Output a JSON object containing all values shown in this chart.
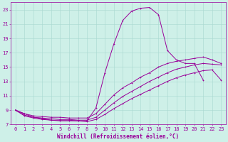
{
  "xlabel": "Windchill (Refroidissement éolien,°C)",
  "bg_color": "#cef0e8",
  "grid_color": "#a8d8d0",
  "line_color": "#990099",
  "xlim": [
    -0.5,
    23.5
  ],
  "ylim": [
    7,
    24
  ],
  "xticks": [
    0,
    1,
    2,
    3,
    4,
    5,
    6,
    7,
    8,
    9,
    10,
    11,
    12,
    13,
    14,
    15,
    16,
    17,
    18,
    19,
    20,
    21,
    22,
    23
  ],
  "yticks": [
    7,
    9,
    11,
    13,
    15,
    17,
    19,
    21,
    23
  ],
  "curve1_x": [
    0,
    1,
    2,
    3,
    4,
    5,
    6,
    7,
    8,
    9,
    10,
    11,
    12,
    13,
    14,
    15,
    16,
    17,
    18,
    19,
    20,
    21
  ],
  "curve1_y": [
    9.0,
    8.5,
    8.0,
    7.8,
    7.6,
    7.6,
    7.6,
    7.5,
    7.5,
    9.3,
    14.2,
    18.2,
    21.5,
    22.8,
    23.2,
    23.3,
    22.3,
    17.3,
    16.0,
    15.5,
    15.5,
    13.2
  ],
  "curve2_x": [
    0,
    1,
    2,
    3,
    4,
    5,
    6,
    7,
    8,
    9,
    10,
    11,
    12,
    13,
    14,
    15,
    16,
    17,
    18,
    19,
    20,
    21,
    22,
    23
  ],
  "curve2_y": [
    9.0,
    8.5,
    8.2,
    8.1,
    8.0,
    8.0,
    7.9,
    7.9,
    7.9,
    8.5,
    9.8,
    11.1,
    12.1,
    12.8,
    13.6,
    14.2,
    15.0,
    15.5,
    15.8,
    16.0,
    16.2,
    16.4,
    16.0,
    15.5
  ],
  "curve3_x": [
    0,
    1,
    2,
    3,
    4,
    5,
    6,
    7,
    8,
    9,
    10,
    11,
    12,
    13,
    14,
    15,
    16,
    17,
    18,
    19,
    20,
    21,
    22,
    23
  ],
  "curve3_y": [
    9.0,
    8.3,
    8.0,
    7.9,
    7.8,
    7.7,
    7.7,
    7.6,
    7.6,
    8.0,
    9.0,
    10.0,
    10.9,
    11.6,
    12.3,
    13.0,
    13.6,
    14.2,
    14.7,
    15.0,
    15.3,
    15.5,
    15.4,
    15.3
  ],
  "curve4_x": [
    0,
    1,
    2,
    3,
    4,
    5,
    6,
    7,
    8,
    9,
    10,
    11,
    12,
    13,
    14,
    15,
    16,
    17,
    18,
    19,
    20,
    21,
    22,
    23
  ],
  "curve4_y": [
    9.0,
    8.2,
    7.9,
    7.7,
    7.6,
    7.5,
    7.5,
    7.5,
    7.4,
    7.7,
    8.4,
    9.2,
    9.9,
    10.6,
    11.2,
    11.8,
    12.4,
    13.0,
    13.5,
    13.9,
    14.2,
    14.5,
    14.6,
    13.2
  ],
  "lw": 0.7,
  "ms": 1.8,
  "font_size": 5.5,
  "tick_label_size": 5.0
}
